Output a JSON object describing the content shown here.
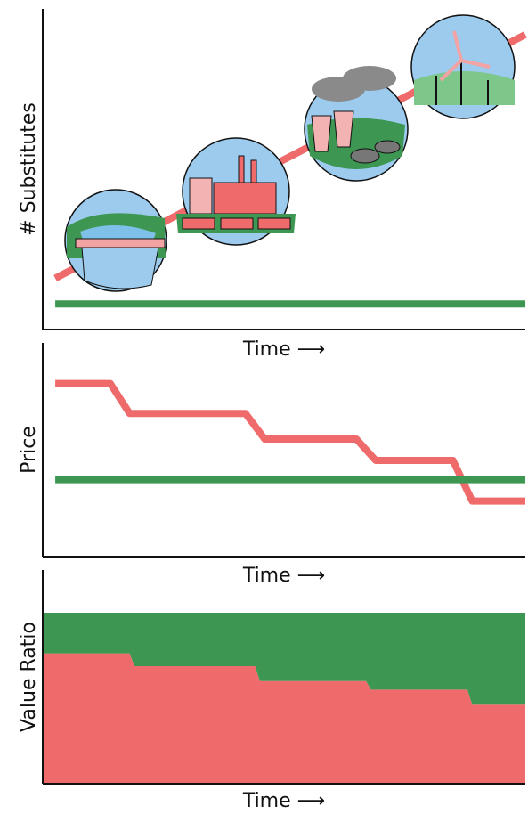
{
  "chart_data": [
    {
      "type": "line",
      "y_label": "# Substitutes",
      "x_label": "Time ⟶",
      "x": [
        2.6,
        100
      ],
      "series": [
        {
          "color": "#ef6b6b",
          "values": [
            16,
            92
          ]
        },
        {
          "color": "#3d9651",
          "values": [
            8,
            8
          ]
        }
      ],
      "xlim": [
        0,
        100
      ],
      "ylim": [
        0,
        100
      ]
    },
    {
      "type": "line",
      "y_label": "Price",
      "x_label": "Time ⟶",
      "x": [
        2.6,
        14,
        18,
        42,
        46,
        65,
        69,
        85,
        89,
        100
      ],
      "series": [
        {
          "color": "#ef6b6b",
          "values": [
            81,
            81,
            67,
            67,
            55,
            55,
            45,
            45,
            26,
            26
          ]
        },
        {
          "color": "#3d9651",
          "values": [
            36,
            36,
            36,
            36,
            36,
            36,
            36,
            36,
            36,
            36
          ]
        }
      ],
      "xlim": [
        0,
        100
      ],
      "ylim": [
        0,
        100
      ]
    },
    {
      "type": "area",
      "stacked": true,
      "y_label": "Value Ratio",
      "x_label": "Time ⟶",
      "x": [
        0,
        18,
        19,
        44,
        45,
        67,
        68,
        88,
        89,
        100
      ],
      "series": [
        {
          "color": "#ef6b6b",
          "values": [
            61,
            61,
            55,
            55,
            48,
            48,
            44,
            44,
            37,
            37
          ]
        },
        {
          "color": "#3d9651",
          "values": [
            19,
            19,
            25,
            25,
            32,
            32,
            36,
            36,
            43,
            43
          ]
        }
      ],
      "xlim": [
        0,
        100
      ],
      "ylim": [
        0,
        100
      ]
    }
  ]
}
